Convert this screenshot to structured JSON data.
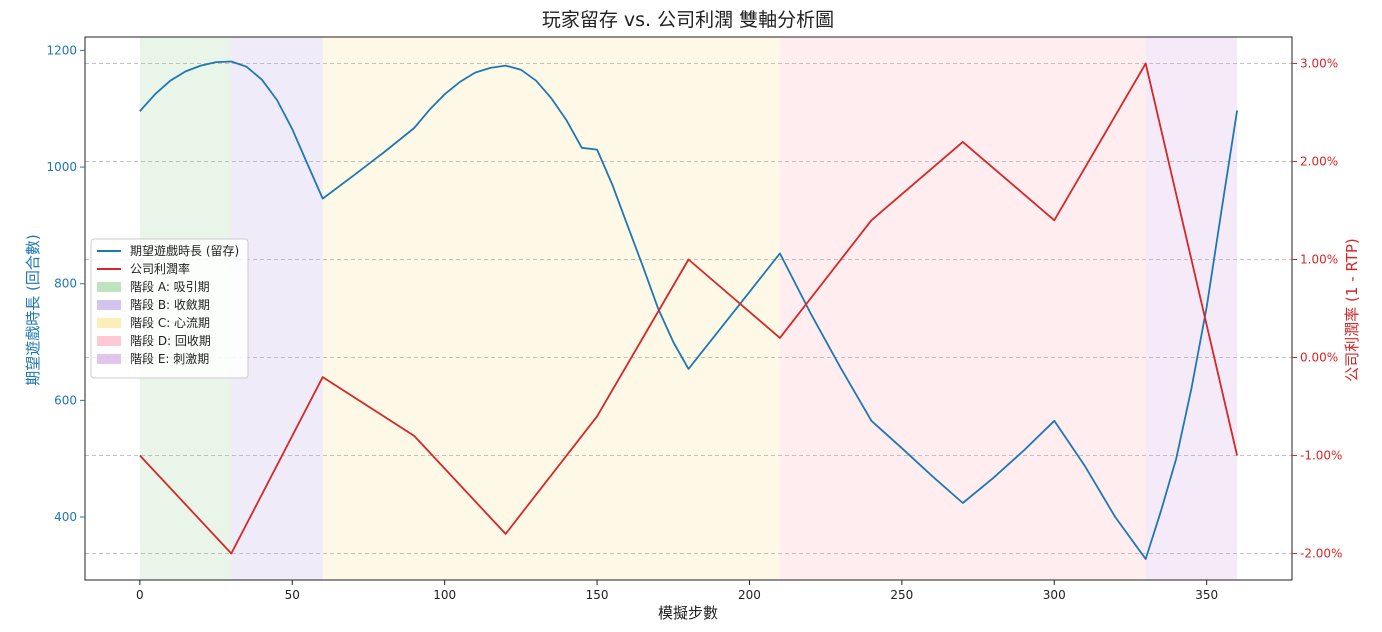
{
  "chart_data": {
    "type": "line",
    "title": "玩家留存 vs. 公司利潤 雙軸分析圖",
    "xlabel": "模擬步數",
    "ylabel_left": "期望遊戲時長 (回合數)",
    "ylabel_right": "公司利潤率 (1 - RTP)",
    "xlim": [
      -18,
      378
    ],
    "ylim_left": [
      292,
      1223
    ],
    "ylim_right": [
      -2.27,
      3.27
    ],
    "x_ticks": [
      0,
      50,
      100,
      150,
      200,
      250,
      300,
      350
    ],
    "y_left_ticks": [
      400,
      600,
      800,
      1000,
      1200
    ],
    "y_right_ticks": [
      "-2.00%",
      "-1.00%",
      "0.00%",
      "1.00%",
      "2.00%",
      "3.00%"
    ],
    "y_right_tick_values": [
      -2,
      -1,
      0,
      1,
      2,
      3
    ],
    "grid": "horizontal-dashed",
    "legend_position": "center-left",
    "colors": {
      "retention": "#1f77b4",
      "profit": "#d62728",
      "left_axis": "#1f77b4",
      "right_axis": "#d62728"
    },
    "phases": [
      {
        "label": "階段 A: 吸引期",
        "start": 0,
        "end": 30,
        "color": "#2ca02c",
        "opacity": 0.1
      },
      {
        "label": "階段 B: 收斂期",
        "start": 30,
        "end": 60,
        "color": "#6a3cc8",
        "opacity": 0.1
      },
      {
        "label": "階段 C: 心流期",
        "start": 60,
        "end": 210,
        "color": "#f5c518",
        "opacity": 0.1
      },
      {
        "label": "階段 D: 回收期",
        "start": 210,
        "end": 330,
        "color": "#ff4d6d",
        "opacity": 0.1
      },
      {
        "label": "階段 E: 刺激期",
        "start": 330,
        "end": 360,
        "color": "#9c3fbf",
        "opacity": 0.1
      }
    ],
    "series": [
      {
        "name": "期望遊戲時長 (留存)",
        "axis": "left",
        "x": [
          0,
          5,
          10,
          15,
          20,
          25,
          30,
          35,
          40,
          45,
          50,
          55,
          60,
          70,
          80,
          90,
          95,
          100,
          105,
          110,
          115,
          120,
          125,
          130,
          135,
          140,
          145,
          150,
          155,
          160,
          165,
          170,
          175,
          180,
          190,
          200,
          210,
          220,
          230,
          240,
          250,
          260,
          270,
          280,
          290,
          300,
          310,
          320,
          330,
          335,
          340,
          345,
          350,
          355,
          360
        ],
        "y": [
          1096,
          1125,
          1148,
          1164,
          1174,
          1180,
          1181,
          1172,
          1150,
          1115,
          1065,
          1005,
          946,
          985,
          1025,
          1067,
          1098,
          1125,
          1146,
          1162,
          1170,
          1174,
          1167,
          1148,
          1118,
          1080,
          1033,
          1030,
          970,
          900,
          830,
          758,
          700,
          654,
          720,
          786,
          852,
          750,
          655,
          565,
          518,
          470,
          424,
          467,
          514,
          565,
          488,
          400,
          328,
          410,
          500,
          620,
          760,
          930,
          1097
        ]
      },
      {
        "name": "公司利潤率",
        "axis": "right",
        "x": [
          0,
          30,
          60,
          90,
          120,
          150,
          180,
          210,
          240,
          270,
          300,
          330,
          360
        ],
        "y": [
          -1.0,
          -2.0,
          -0.2,
          -0.8,
          -1.8,
          -0.6,
          1.0,
          0.2,
          1.4,
          2.2,
          1.4,
          3.0,
          -1.0
        ]
      }
    ]
  }
}
